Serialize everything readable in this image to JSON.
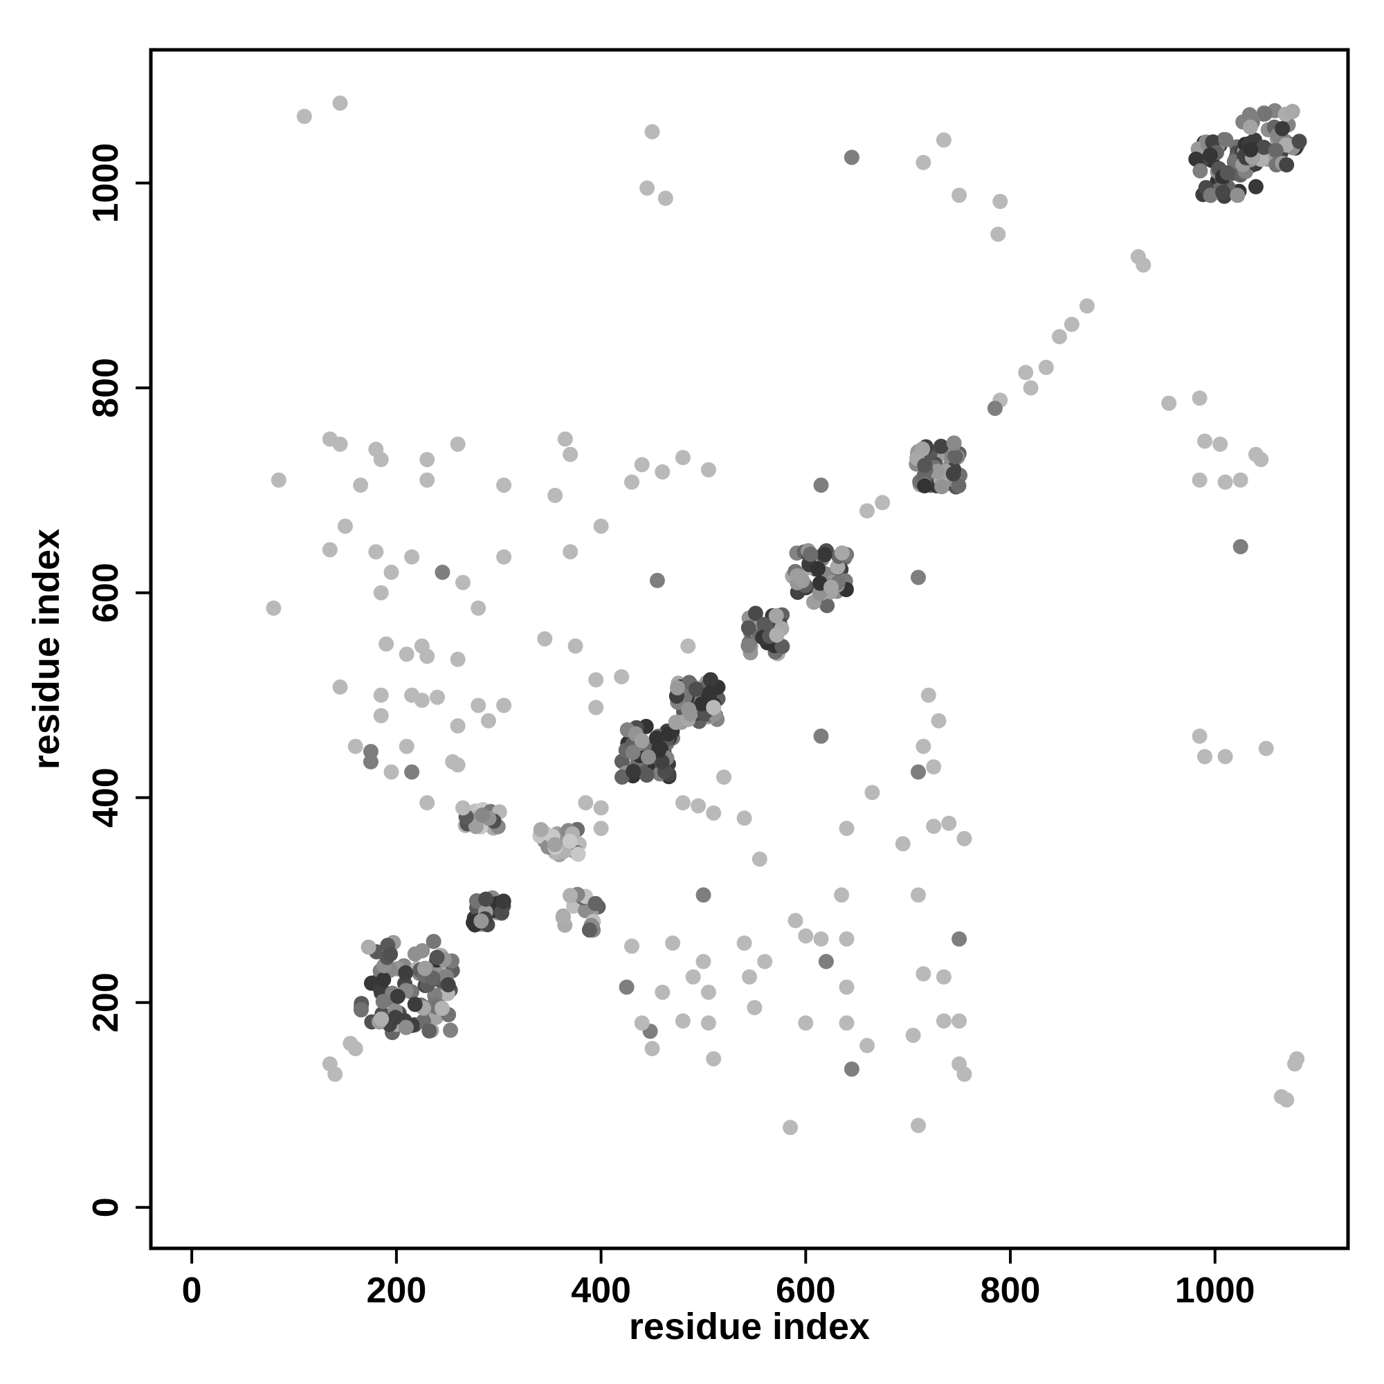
{
  "chart_data": {
    "type": "scatter",
    "title": "",
    "xlabel": "residue index",
    "ylabel": "residue index",
    "xlim": [
      -40,
      1130
    ],
    "ylim": [
      -40,
      1130
    ],
    "xticks": [
      0,
      200,
      400,
      600,
      800,
      1000
    ],
    "yticks": [
      0,
      200,
      400,
      600,
      800,
      1000
    ],
    "grid": false,
    "legend": "none",
    "colors": {
      "dark": "#333333",
      "mid": "#8c8c8c",
      "light": "#c8c8c8"
    },
    "clusters": [
      {
        "center": [
          210,
          215
        ],
        "spread": [
          45,
          45
        ],
        "count": 90,
        "shade": 0.55
      },
      {
        "center": [
          290,
          290
        ],
        "spread": [
          15,
          15
        ],
        "count": 30,
        "shade": 0.7
      },
      {
        "center": [
          285,
          380
        ],
        "spread": [
          18,
          10
        ],
        "count": 20,
        "shade": 0.4
      },
      {
        "center": [
          360,
          355
        ],
        "spread": [
          20,
          15
        ],
        "count": 25,
        "shade": 0.2
      },
      {
        "center": [
          380,
          290
        ],
        "spread": [
          18,
          20
        ],
        "count": 20,
        "shade": 0.35
      },
      {
        "center": [
          445,
          445
        ],
        "spread": [
          25,
          25
        ],
        "count": 55,
        "shade": 0.7
      },
      {
        "center": [
          495,
          495
        ],
        "spread": [
          22,
          22
        ],
        "count": 50,
        "shade": 0.65
      },
      {
        "center": [
          560,
          560
        ],
        "spread": [
          18,
          20
        ],
        "count": 35,
        "shade": 0.6
      },
      {
        "center": [
          615,
          615
        ],
        "spread": [
          28,
          28
        ],
        "count": 55,
        "shade": 0.6
      },
      {
        "center": [
          730,
          725
        ],
        "spread": [
          22,
          22
        ],
        "count": 50,
        "shade": 0.65
      },
      {
        "center": [
          1010,
          1015
        ],
        "spread": [
          30,
          28
        ],
        "count": 55,
        "shade": 0.7
      },
      {
        "center": [
          1055,
          1045
        ],
        "spread": [
          28,
          28
        ],
        "count": 45,
        "shade": 0.6
      }
    ],
    "points": [
      [
        110,
        1065,
        0.1
      ],
      [
        145,
        1078,
        0.1
      ],
      [
        450,
        1050,
        0.1
      ],
      [
        445,
        995,
        0.1
      ],
      [
        463,
        985,
        0.1
      ],
      [
        645,
        1025,
        0.5
      ],
      [
        715,
        1020,
        0.1
      ],
      [
        735,
        1042,
        0.1
      ],
      [
        750,
        988,
        0.1
      ],
      [
        790,
        982,
        0.1
      ],
      [
        788,
        950,
        0.1
      ],
      [
        925,
        928,
        0.1
      ],
      [
        930,
        920,
        0.1
      ],
      [
        875,
        880,
        0.1
      ],
      [
        860,
        862,
        0.1
      ],
      [
        848,
        850,
        0.1
      ],
      [
        835,
        820,
        0.1
      ],
      [
        815,
        815,
        0.1
      ],
      [
        820,
        800,
        0.1
      ],
      [
        790,
        788,
        0.1
      ],
      [
        785,
        780,
        0.5
      ],
      [
        955,
        785,
        0.1
      ],
      [
        985,
        790,
        0.1
      ],
      [
        990,
        748,
        0.1
      ],
      [
        1005,
        745,
        0.1
      ],
      [
        985,
        710,
        0.1
      ],
      [
        1010,
        708,
        0.1
      ],
      [
        1025,
        710,
        0.1
      ],
      [
        1040,
        735,
        0.1
      ],
      [
        1045,
        730,
        0.1
      ],
      [
        1025,
        645,
        0.5
      ],
      [
        985,
        460,
        0.1
      ],
      [
        990,
        440,
        0.1
      ],
      [
        1010,
        440,
        0.1
      ],
      [
        1050,
        448,
        0.1
      ],
      [
        1065,
        108,
        0.1
      ],
      [
        1070,
        105,
        0.1
      ],
      [
        1080,
        145,
        0.1
      ],
      [
        1078,
        140,
        0.1
      ],
      [
        615,
        705,
        0.5
      ],
      [
        660,
        680,
        0.1
      ],
      [
        675,
        688,
        0.1
      ],
      [
        710,
        615,
        0.5
      ],
      [
        720,
        500,
        0.1
      ],
      [
        730,
        475,
        0.1
      ],
      [
        715,
        450,
        0.1
      ],
      [
        725,
        430,
        0.1
      ],
      [
        710,
        425,
        0.5
      ],
      [
        615,
        460,
        0.5
      ],
      [
        665,
        405,
        0.1
      ],
      [
        640,
        370,
        0.1
      ],
      [
        695,
        355,
        0.1
      ],
      [
        725,
        372,
        0.1
      ],
      [
        740,
        375,
        0.1
      ],
      [
        755,
        360,
        0.1
      ],
      [
        710,
        305,
        0.1
      ],
      [
        750,
        262,
        0.5
      ],
      [
        715,
        228,
        0.1
      ],
      [
        735,
        225,
        0.1
      ],
      [
        735,
        182,
        0.1
      ],
      [
        750,
        182,
        0.1
      ],
      [
        705,
        168,
        0.1
      ],
      [
        660,
        158,
        0.1
      ],
      [
        750,
        140,
        0.1
      ],
      [
        755,
        130,
        0.1
      ],
      [
        710,
        80,
        0.1
      ],
      [
        585,
        78,
        0.1
      ],
      [
        645,
        135,
        0.5
      ],
      [
        640,
        180,
        0.1
      ],
      [
        600,
        180,
        0.1
      ],
      [
        590,
        280,
        0.1
      ],
      [
        600,
        265,
        0.1
      ],
      [
        615,
        262,
        0.1
      ],
      [
        620,
        240,
        0.5
      ],
      [
        640,
        262,
        0.1
      ],
      [
        635,
        305,
        0.1
      ],
      [
        640,
        215,
        0.1
      ],
      [
        555,
        340,
        0.1
      ],
      [
        560,
        240,
        0.1
      ],
      [
        545,
        225,
        0.1
      ],
      [
        550,
        195,
        0.1
      ],
      [
        540,
        258,
        0.1
      ],
      [
        500,
        305,
        0.5
      ],
      [
        500,
        240,
        0.1
      ],
      [
        490,
        225,
        0.1
      ],
      [
        505,
        210,
        0.1
      ],
      [
        505,
        180,
        0.1
      ],
      [
        510,
        145,
        0.1
      ],
      [
        480,
        182,
        0.1
      ],
      [
        470,
        258,
        0.1
      ],
      [
        460,
        210,
        0.1
      ],
      [
        448,
        172,
        0.5
      ],
      [
        430,
        255,
        0.1
      ],
      [
        425,
        215,
        0.5
      ],
      [
        450,
        155,
        0.1
      ],
      [
        440,
        180,
        0.1
      ],
      [
        420,
        518,
        0.1
      ],
      [
        395,
        515,
        0.1
      ],
      [
        395,
        488,
        0.1
      ],
      [
        375,
        548,
        0.1
      ],
      [
        400,
        665,
        0.1
      ],
      [
        370,
        640,
        0.1
      ],
      [
        345,
        555,
        0.1
      ],
      [
        355,
        695,
        0.1
      ],
      [
        365,
        750,
        0.1
      ],
      [
        370,
        735,
        0.1
      ],
      [
        430,
        708,
        0.1
      ],
      [
        440,
        725,
        0.1
      ],
      [
        460,
        718,
        0.1
      ],
      [
        480,
        732,
        0.1
      ],
      [
        505,
        720,
        0.1
      ],
      [
        455,
        612,
        0.5
      ],
      [
        485,
        548,
        0.1
      ],
      [
        510,
        488,
        0.1
      ],
      [
        520,
        420,
        0.1
      ],
      [
        480,
        395,
        0.1
      ],
      [
        495,
        392,
        0.1
      ],
      [
        510,
        385,
        0.1
      ],
      [
        540,
        380,
        0.1
      ],
      [
        385,
        395,
        0.1
      ],
      [
        400,
        390,
        0.1
      ],
      [
        400,
        370,
        0.1
      ],
      [
        80,
        585,
        0.1
      ],
      [
        85,
        710,
        0.1
      ],
      [
        135,
        750,
        0.1
      ],
      [
        145,
        745,
        0.1
      ],
      [
        165,
        705,
        0.1
      ],
      [
        180,
        740,
        0.1
      ],
      [
        185,
        730,
        0.1
      ],
      [
        135,
        642,
        0.1
      ],
      [
        150,
        665,
        0.1
      ],
      [
        180,
        640,
        0.1
      ],
      [
        195,
        620,
        0.1
      ],
      [
        190,
        550,
        0.1
      ],
      [
        210,
        540,
        0.1
      ],
      [
        225,
        548,
        0.1
      ],
      [
        230,
        538,
        0.1
      ],
      [
        185,
        500,
        0.1
      ],
      [
        215,
        500,
        0.1
      ],
      [
        225,
        495,
        0.1
      ],
      [
        240,
        498,
        0.1
      ],
      [
        145,
        508,
        0.1
      ],
      [
        160,
        450,
        0.1
      ],
      [
        175,
        445,
        0.5
      ],
      [
        175,
        435,
        0.5
      ],
      [
        185,
        480,
        0.1
      ],
      [
        210,
        450,
        0.1
      ],
      [
        215,
        425,
        0.5
      ],
      [
        195,
        425,
        0.1
      ],
      [
        255,
        435,
        0.1
      ],
      [
        260,
        470,
        0.1
      ],
      [
        260,
        535,
        0.1
      ],
      [
        265,
        610,
        0.1
      ],
      [
        245,
        620,
        0.5
      ],
      [
        215,
        635,
        0.1
      ],
      [
        185,
        600,
        0.1
      ],
      [
        230,
        730,
        0.1
      ],
      [
        230,
        710,
        0.1
      ],
      [
        260,
        745,
        0.1
      ],
      [
        305,
        705,
        0.1
      ],
      [
        305,
        635,
        0.1
      ],
      [
        280,
        585,
        0.1
      ],
      [
        290,
        475,
        0.1
      ],
      [
        305,
        490,
        0.1
      ],
      [
        280,
        490,
        0.1
      ],
      [
        260,
        432,
        0.1
      ],
      [
        230,
        395,
        0.1
      ],
      [
        265,
        390,
        0.1
      ],
      [
        135,
        140,
        0.1
      ],
      [
        140,
        130,
        0.1
      ],
      [
        155,
        160,
        0.1
      ],
      [
        160,
        155,
        0.1
      ]
    ]
  }
}
